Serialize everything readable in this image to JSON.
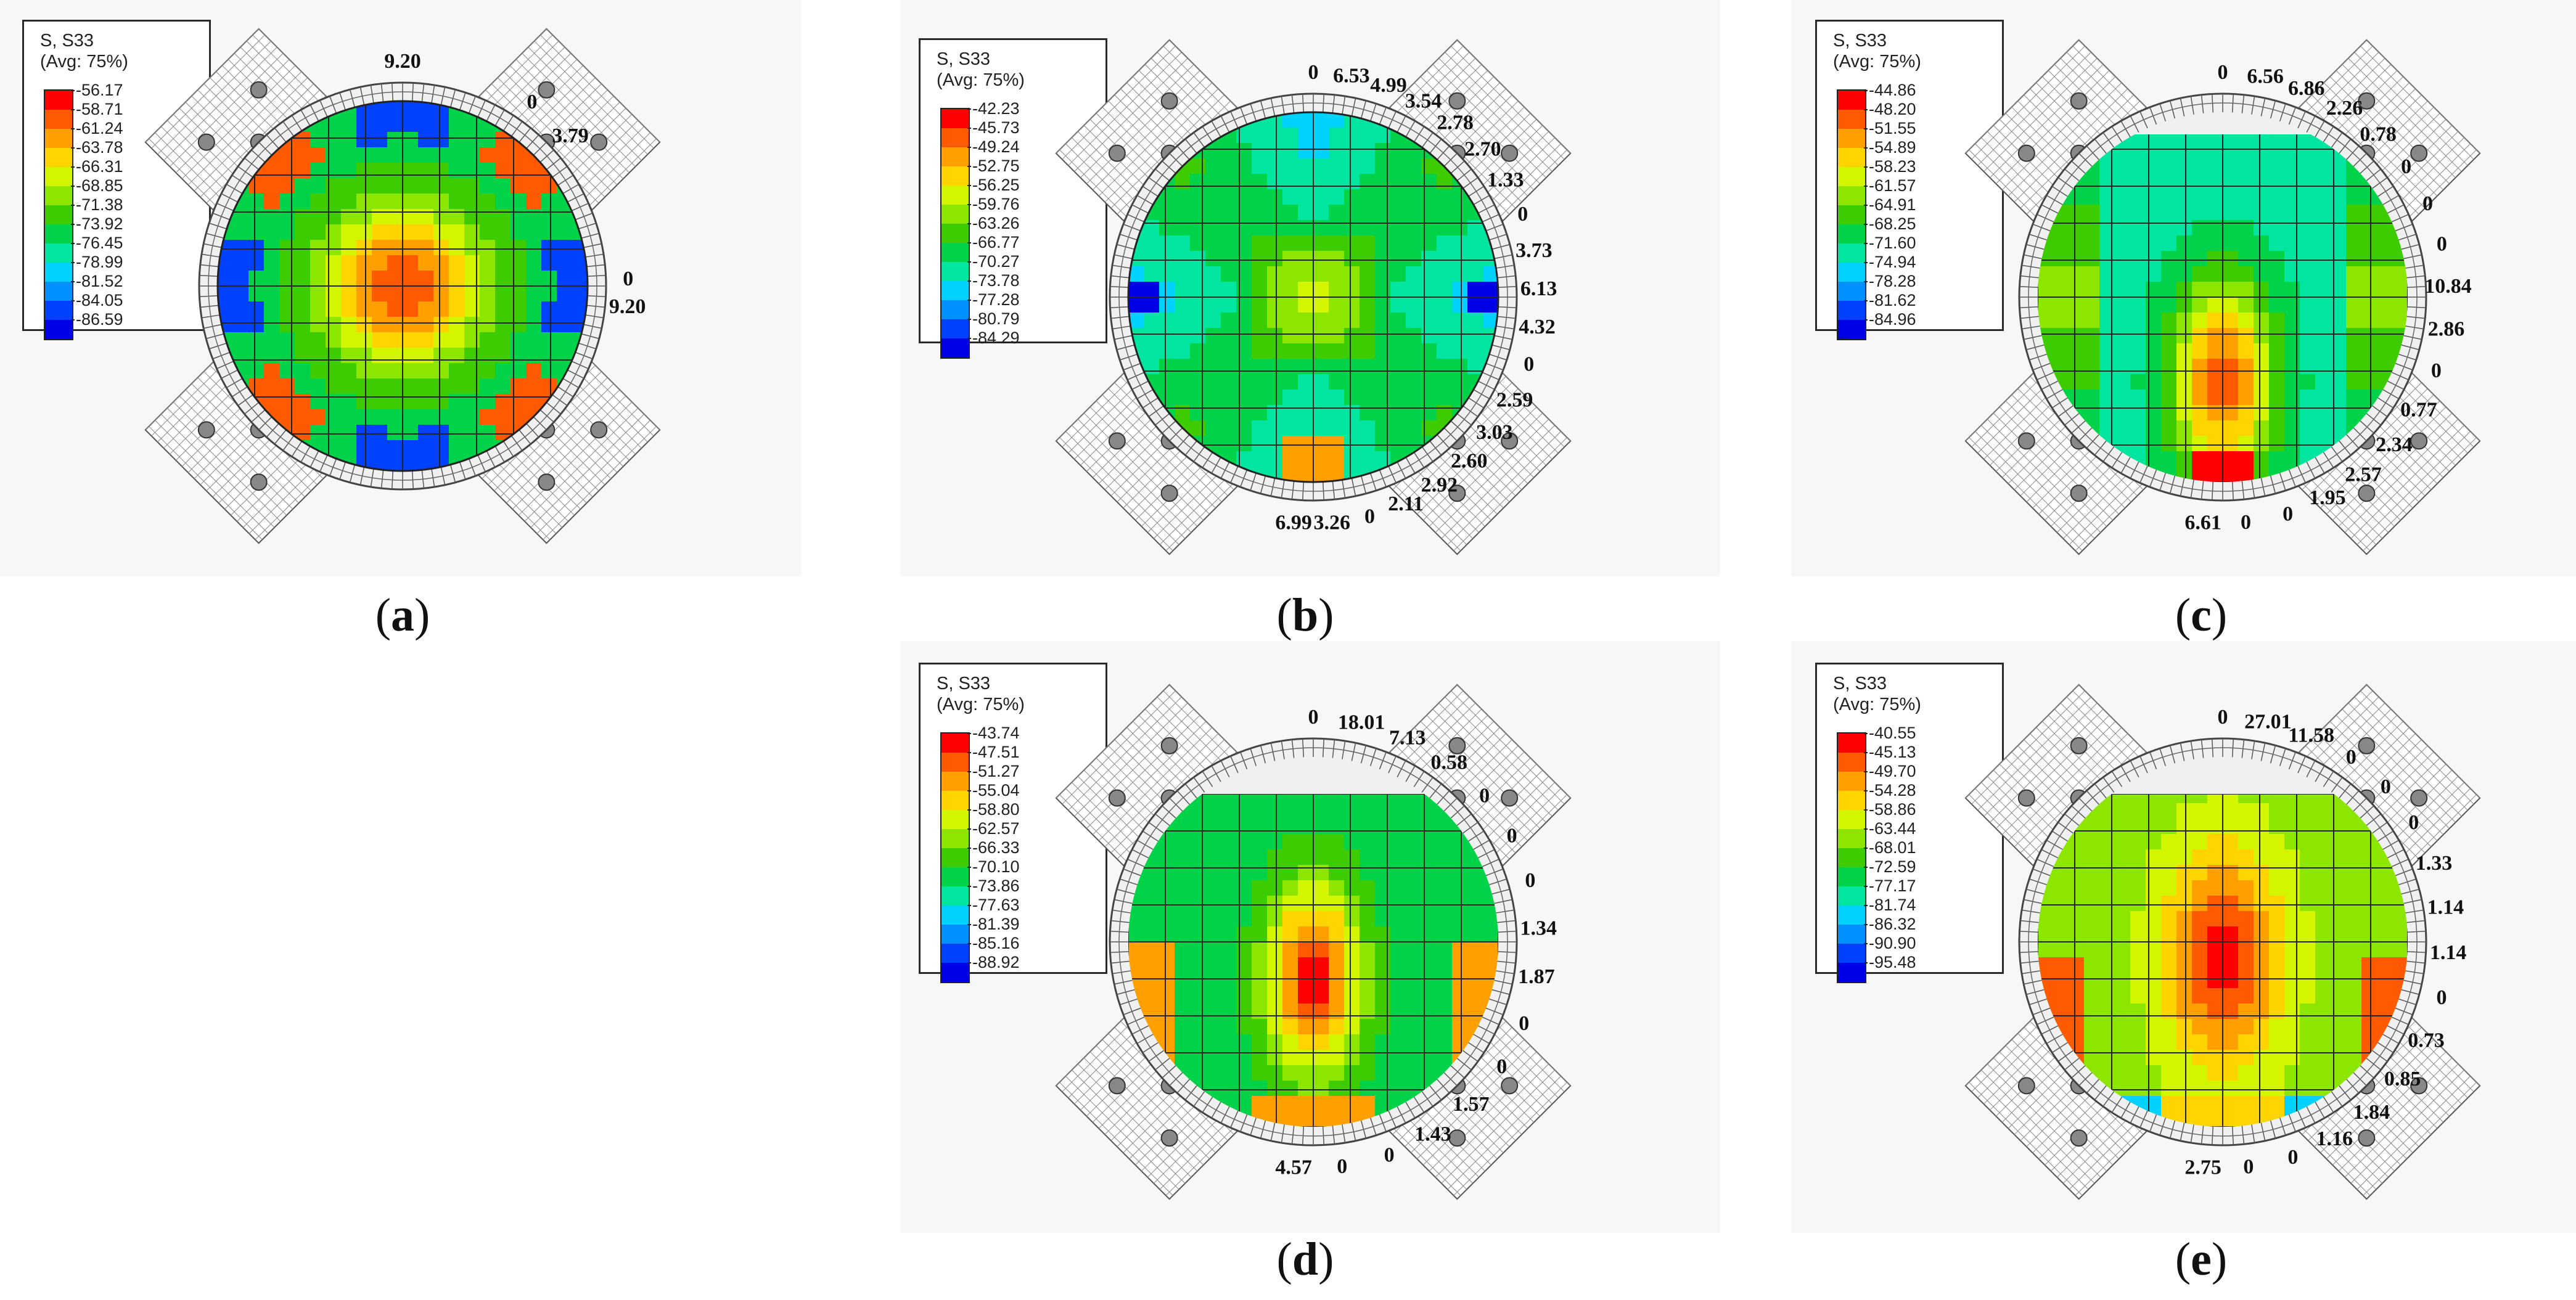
{
  "legend_colors": [
    "#ff0000",
    "#ff5a00",
    "#ffa000",
    "#ffd400",
    "#d4f500",
    "#8ce600",
    "#3ccc00",
    "#00d24a",
    "#00e6a0",
    "#00d2ff",
    "#0090ff",
    "#0040ff",
    "#0000e6"
  ],
  "panels": [
    {
      "id": "a",
      "legend_title": "S, S33",
      "legend_sub": "(Avg: 75%)",
      "legend_values": [
        "-56.17",
        "-58.71",
        "-61.24",
        "-63.78",
        "-66.31",
        "-68.85",
        "-71.38",
        "-73.92",
        "-76.45",
        "-78.99",
        "-81.52",
        "-84.05",
        "-86.59"
      ],
      "caption_open": "(",
      "caption_letter": "a",
      "caption_close": ")",
      "labels": [
        "9.20",
        "0",
        "3.79",
        "0",
        "9.20"
      ]
    },
    {
      "id": "b",
      "legend_title": "S, S33",
      "legend_sub": "(Avg: 75%)",
      "legend_values": [
        "-42.23",
        "-45.73",
        "-49.24",
        "-52.75",
        "-56.25",
        "-59.76",
        "-63.26",
        "-66.77",
        "-70.27",
        "-73.78",
        "-77.28",
        "-80.79",
        "-84.29"
      ],
      "caption_open": "(",
      "caption_letter": "b",
      "caption_close": ")",
      "labels": [
        "0",
        "6.53",
        "4.99",
        "3.54",
        "2.78",
        "2.70",
        "1.33",
        "0",
        "3.73",
        "6.13",
        "4.32",
        "0",
        "2.59",
        "3.03",
        "2.60",
        "2.92",
        "2.11",
        "0",
        "3.26",
        "6.99"
      ]
    },
    {
      "id": "c",
      "legend_title": "S, S33",
      "legend_sub": "(Avg: 75%)",
      "legend_values": [
        "-44.86",
        "-48.20",
        "-51.55",
        "-54.89",
        "-58.23",
        "-61.57",
        "-64.91",
        "-68.25",
        "-71.60",
        "-74.94",
        "-78.28",
        "-81.62",
        "-84.96"
      ],
      "caption_open": "(",
      "caption_letter": "c",
      "caption_close": ")",
      "labels": [
        "0",
        "6.56",
        "6.86",
        "2.26",
        "0.78",
        "0",
        "0",
        "0",
        "10.84",
        "2.86",
        "0",
        "0.77",
        "2.34",
        "2.57",
        "1.95",
        "0",
        "0",
        "6.61"
      ]
    },
    {
      "id": "d",
      "legend_title": "S, S33",
      "legend_sub": "(Avg: 75%)",
      "legend_values": [
        "-43.74",
        "-47.51",
        "-51.27",
        "-55.04",
        "-58.80",
        "-62.57",
        "-66.33",
        "-70.10",
        "-73.86",
        "-77.63",
        "-81.39",
        "-85.16",
        "-88.92"
      ],
      "caption_open": "(",
      "caption_letter": "d",
      "caption_close": ")",
      "labels": [
        "0",
        "18.01",
        "7.13",
        "0.58",
        "0",
        "0",
        "0",
        "1.34",
        "1.87",
        "0",
        "0",
        "1.57",
        "1.43",
        "0",
        "0",
        "4.57"
      ]
    },
    {
      "id": "e",
      "legend_title": "S, S33",
      "legend_sub": "(Avg: 75%)",
      "legend_values": [
        "-40.55",
        "-45.13",
        "-49.70",
        "-54.28",
        "-58.86",
        "-63.44",
        "-68.01",
        "-72.59",
        "-77.17",
        "-81.74",
        "-86.32",
        "-90.90",
        "-95.48"
      ],
      "caption_open": "(",
      "caption_letter": "e",
      "caption_close": ")",
      "labels": [
        "0",
        "27.01",
        "11.58",
        "0",
        "0",
        "0",
        "1.33",
        "1.14",
        "1.14",
        "0",
        "0.73",
        "0.85",
        "1.84",
        "1.16",
        "0",
        "0",
        "2.75"
      ]
    }
  ]
}
